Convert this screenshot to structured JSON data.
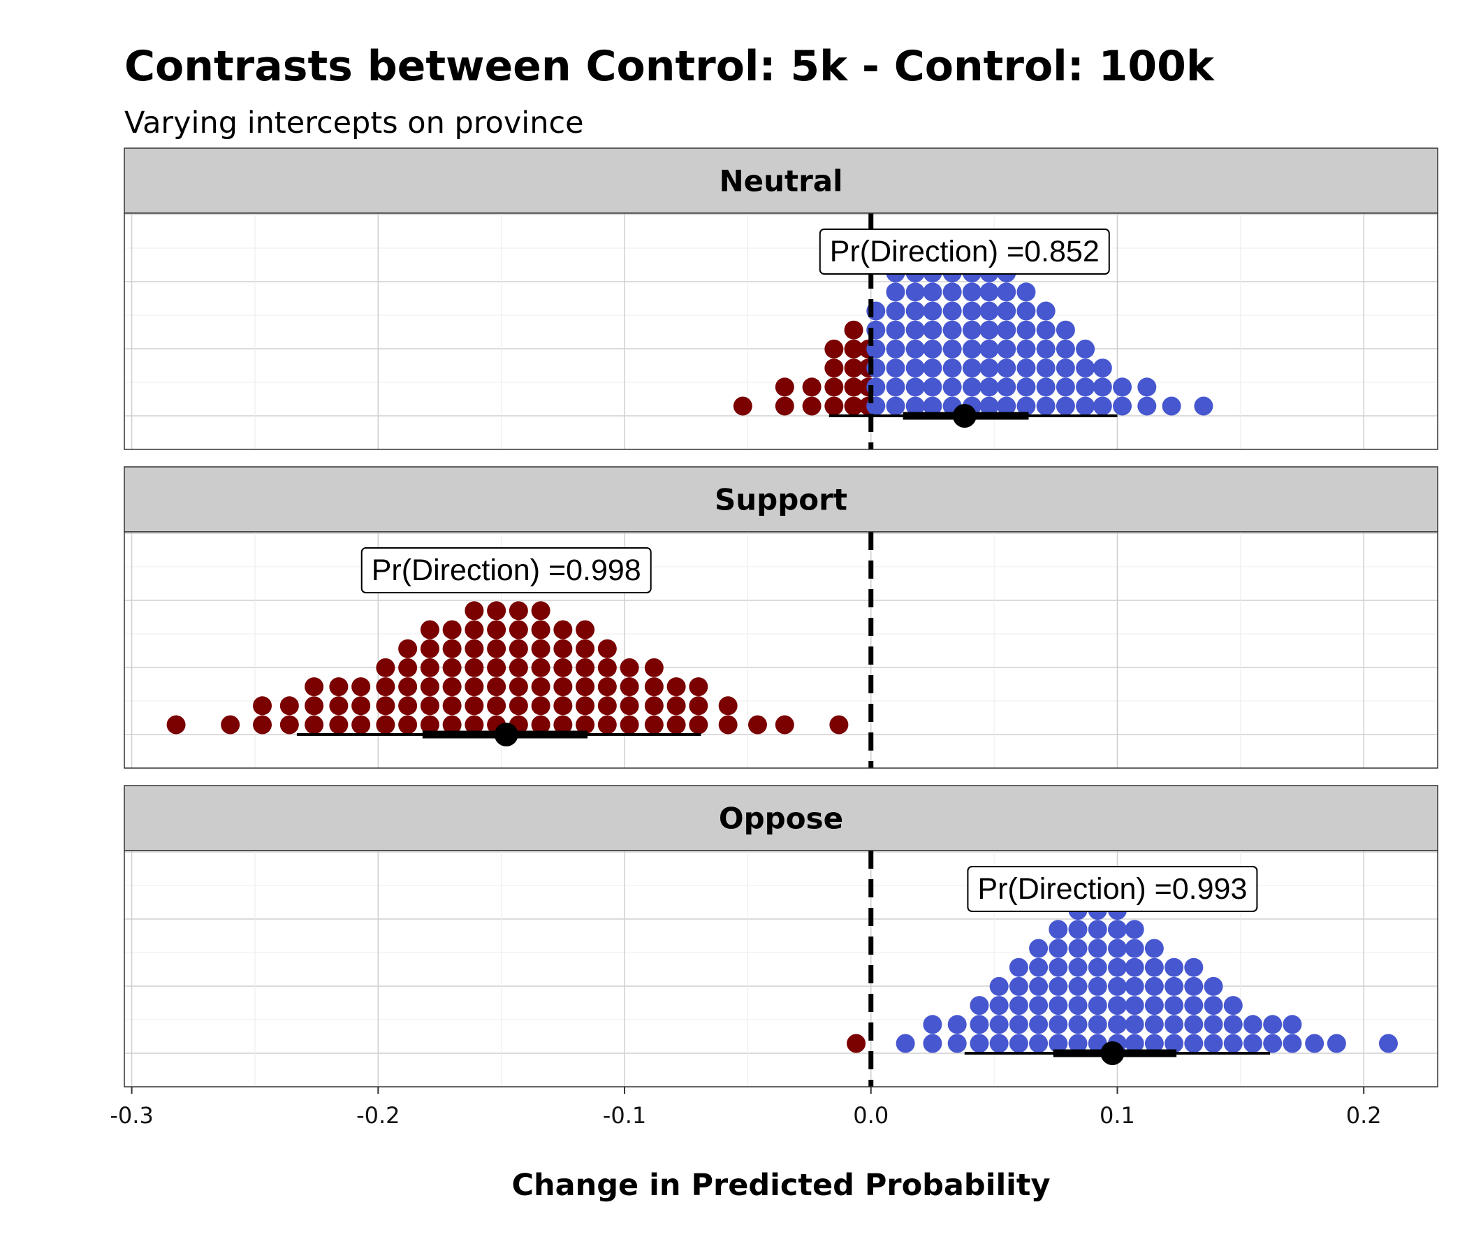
{
  "chart_data": {
    "type": "dotplot",
    "title": "Contrasts between Control: 5k - Control: 100k",
    "subtitle": "Varying intercepts on province",
    "xlabel": "Change in Predicted Probability",
    "xlim": [
      -0.303,
      0.23
    ],
    "x_ticks": [
      -0.3,
      -0.2,
      -0.1,
      0.0,
      0.1,
      0.2
    ],
    "x_tick_labels": [
      "-0.3",
      "-0.2",
      "-0.1",
      "0.0",
      "0.1",
      "0.2"
    ],
    "reference_line": 0,
    "grid": true,
    "colors": {
      "negative": "#7b0000",
      "positive": "#4657cf",
      "interval": "#000000"
    },
    "panels": [
      {
        "label": "Neutral",
        "pd_label": "Pr(Direction) =0.852",
        "point_estimate": 0.038,
        "interval_inner": [
          0.013,
          0.064
        ],
        "interval_outer": [
          -0.017,
          0.1
        ],
        "dots": [
          {
            "x": -0.052,
            "n": 1
          },
          {
            "x": -0.035,
            "n": 2
          },
          {
            "x": -0.024,
            "n": 2
          },
          {
            "x": -0.015,
            "n": 4
          },
          {
            "x": -0.007,
            "n": 5
          },
          {
            "x": -0.001,
            "n": 4
          },
          {
            "x": 0.002,
            "n": 6
          },
          {
            "x": 0.01,
            "n": 8
          },
          {
            "x": 0.018,
            "n": 8
          },
          {
            "x": 0.025,
            "n": 8
          },
          {
            "x": 0.033,
            "n": 9
          },
          {
            "x": 0.041,
            "n": 9
          },
          {
            "x": 0.048,
            "n": 9
          },
          {
            "x": 0.055,
            "n": 8
          },
          {
            "x": 0.063,
            "n": 7
          },
          {
            "x": 0.071,
            "n": 6
          },
          {
            "x": 0.079,
            "n": 5
          },
          {
            "x": 0.087,
            "n": 4
          },
          {
            "x": 0.094,
            "n": 3
          },
          {
            "x": 0.102,
            "n": 2
          },
          {
            "x": 0.112,
            "n": 2
          },
          {
            "x": 0.122,
            "n": 1
          },
          {
            "x": 0.135,
            "n": 1
          }
        ]
      },
      {
        "label": "Support",
        "pd_label": "Pr(Direction) =0.998",
        "point_estimate": -0.148,
        "interval_inner": [
          -0.182,
          -0.115
        ],
        "interval_outer": [
          -0.233,
          -0.069
        ],
        "dots": [
          {
            "x": -0.282,
            "n": 1
          },
          {
            "x": -0.26,
            "n": 1
          },
          {
            "x": -0.247,
            "n": 2
          },
          {
            "x": -0.236,
            "n": 2
          },
          {
            "x": -0.226,
            "n": 3
          },
          {
            "x": -0.216,
            "n": 3
          },
          {
            "x": -0.207,
            "n": 3
          },
          {
            "x": -0.197,
            "n": 4
          },
          {
            "x": -0.188,
            "n": 5
          },
          {
            "x": -0.179,
            "n": 6
          },
          {
            "x": -0.17,
            "n": 6
          },
          {
            "x": -0.161,
            "n": 7
          },
          {
            "x": -0.152,
            "n": 7
          },
          {
            "x": -0.143,
            "n": 7
          },
          {
            "x": -0.134,
            "n": 7
          },
          {
            "x": -0.125,
            "n": 6
          },
          {
            "x": -0.116,
            "n": 6
          },
          {
            "x": -0.107,
            "n": 5
          },
          {
            "x": -0.098,
            "n": 4
          },
          {
            "x": -0.088,
            "n": 4
          },
          {
            "x": -0.079,
            "n": 3
          },
          {
            "x": -0.07,
            "n": 3
          },
          {
            "x": -0.058,
            "n": 2
          },
          {
            "x": -0.046,
            "n": 1
          },
          {
            "x": -0.035,
            "n": 1
          },
          {
            "x": -0.013,
            "n": 1
          }
        ]
      },
      {
        "label": "Oppose",
        "pd_label": "Pr(Direction) =0.993",
        "point_estimate": 0.098,
        "interval_inner": [
          0.074,
          0.124
        ],
        "interval_outer": [
          0.038,
          0.162
        ],
        "dots": [
          {
            "x": -0.006,
            "n": 1
          },
          {
            "x": 0.014,
            "n": 1
          },
          {
            "x": 0.025,
            "n": 2
          },
          {
            "x": 0.035,
            "n": 2
          },
          {
            "x": 0.044,
            "n": 3
          },
          {
            "x": 0.052,
            "n": 4
          },
          {
            "x": 0.06,
            "n": 5
          },
          {
            "x": 0.068,
            "n": 6
          },
          {
            "x": 0.076,
            "n": 7
          },
          {
            "x": 0.084,
            "n": 8
          },
          {
            "x": 0.092,
            "n": 8
          },
          {
            "x": 0.1,
            "n": 8
          },
          {
            "x": 0.107,
            "n": 7
          },
          {
            "x": 0.115,
            "n": 6
          },
          {
            "x": 0.123,
            "n": 5
          },
          {
            "x": 0.131,
            "n": 5
          },
          {
            "x": 0.139,
            "n": 4
          },
          {
            "x": 0.147,
            "n": 3
          },
          {
            "x": 0.155,
            "n": 2
          },
          {
            "x": 0.163,
            "n": 2
          },
          {
            "x": 0.171,
            "n": 2
          },
          {
            "x": 0.18,
            "n": 1
          },
          {
            "x": 0.189,
            "n": 1
          },
          {
            "x": 0.21,
            "n": 1
          }
        ]
      }
    ]
  }
}
